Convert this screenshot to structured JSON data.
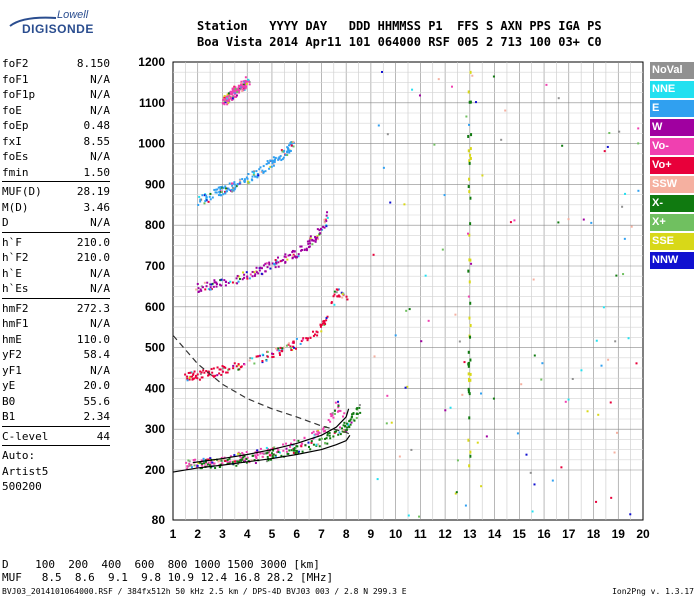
{
  "logo": {
    "line1": "Lowell",
    "line2": "DIGISONDE"
  },
  "header": {
    "line1": "Station   YYYY DAY   DDD HHMMSS P1  FFS S AXN PPS IGA PS",
    "line2": "Boa Vista 2014 Apr11 101 064000 RSF 005 2 713 100 03+ C0"
  },
  "params": [
    {
      "name": "foF2",
      "value": "8.150"
    },
    {
      "name": "foF1",
      "value": "N/A"
    },
    {
      "name": "foF1p",
      "value": "N/A"
    },
    {
      "name": "foE",
      "value": "N/A"
    },
    {
      "name": "foEp",
      "value": "0.48"
    },
    {
      "name": "fxI",
      "value": "8.55"
    },
    {
      "name": "foEs",
      "value": "N/A"
    },
    {
      "name": "fmin",
      "value": "1.50"
    },
    {
      "sep": true
    },
    {
      "name": "MUF(D)",
      "value": "28.19"
    },
    {
      "name": "M(D)",
      "value": "3.46"
    },
    {
      "name": "D",
      "value": "N/A"
    },
    {
      "sep": true
    },
    {
      "name": "h`F",
      "value": "210.0"
    },
    {
      "name": "h`F2",
      "value": "210.0"
    },
    {
      "name": "h`E",
      "value": "N/A"
    },
    {
      "name": "h`Es",
      "value": "N/A"
    },
    {
      "sep": true
    },
    {
      "name": "hmF2",
      "value": "272.3"
    },
    {
      "name": "hmF1",
      "value": "N/A"
    },
    {
      "name": "hmE",
      "value": "110.0"
    },
    {
      "name": "yF2",
      "value": "58.4"
    },
    {
      "name": "yF1",
      "value": "N/A"
    },
    {
      "name": "yE",
      "value": "20.0"
    },
    {
      "name": "B0",
      "value": "55.6"
    },
    {
      "name": "B1",
      "value": "2.34"
    },
    {
      "sep": true
    },
    {
      "name": "C-level",
      "value": "44"
    },
    {
      "sep": true
    },
    {
      "text": "Auto:"
    },
    {
      "text": "Artist5"
    },
    {
      "text": "500200"
    }
  ],
  "legend": [
    {
      "label": "NoVal",
      "color": "#909090"
    },
    {
      "label": "NNE",
      "color": "#22e0f0"
    },
    {
      "label": "E",
      "color": "#30a0f0"
    },
    {
      "label": "W",
      "color": "#a000a0"
    },
    {
      "label": "Vo-",
      "color": "#f040b0"
    },
    {
      "label": "Vo+",
      "color": "#e8003a"
    },
    {
      "label": "SSW",
      "color": "#f5b0a0"
    },
    {
      "label": "X-",
      "color": "#107a10"
    },
    {
      "label": "X+",
      "color": "#70c060"
    },
    {
      "label": "SSE",
      "color": "#d8d818"
    },
    {
      "label": "NNW",
      "color": "#1010d0"
    }
  ],
  "bottom": {
    "line1": "D    100  200  400  600  800 1000 1500 3000 [km]",
    "line2": "MUF   8.5  8.6  9.1  9.8 10.9 12.4 16.8 28.2 [MHz]"
  },
  "footer": "BVJ03_2014101064000.RSF / 384fx512h 50 kHz 2.5 km / DPS-4D BVJ03 003 / 2.8 N 299.3 E",
  "version": "Ion2Png v. 1.3.17",
  "chart_data": {
    "type": "scatter",
    "x_ticks": [
      "1",
      "2",
      "3",
      "4",
      "5",
      "6",
      "7",
      "8",
      "9",
      "10",
      "11",
      "12",
      "13",
      "14",
      "15",
      "16",
      "17",
      "18",
      "19",
      "20"
    ],
    "y_ticks": [
      "80",
      "200",
      "300",
      "400",
      "500",
      "600",
      "700",
      "800",
      "900",
      "1000",
      "1100",
      "1200"
    ],
    "xlim": [
      1,
      20
    ],
    "ylim": [
      80,
      1200
    ],
    "grid": true,
    "traces": [
      {
        "name": "O-trace F2",
        "color": "#f040b0",
        "points": [
          [
            1.5,
            215
          ],
          [
            2,
            218
          ],
          [
            2.5,
            222
          ],
          [
            3,
            228
          ],
          [
            3.5,
            232
          ],
          [
            4,
            238
          ],
          [
            4.5,
            242
          ],
          [
            5,
            250
          ],
          [
            5.5,
            258
          ],
          [
            6,
            268
          ],
          [
            6.5,
            280
          ],
          [
            7,
            300
          ],
          [
            7.3,
            330
          ],
          [
            7.6,
            360
          ],
          [
            7.9,
            330
          ]
        ]
      },
      {
        "name": "X-trace F2",
        "color": "#107a10",
        "points": [
          [
            2,
            214
          ],
          [
            3,
            220
          ],
          [
            4,
            226
          ],
          [
            5,
            238
          ],
          [
            6,
            252
          ],
          [
            7,
            272
          ],
          [
            7.8,
            300
          ],
          [
            8.2,
            330
          ],
          [
            8.5,
            355
          ]
        ]
      },
      {
        "name": "2nd hop",
        "color": "#e8003a",
        "points": [
          [
            1.5,
            430
          ],
          [
            2,
            435
          ],
          [
            2.5,
            440
          ],
          [
            3,
            448
          ],
          [
            3.5,
            455
          ],
          [
            4,
            465
          ],
          [
            4.5,
            475
          ],
          [
            5,
            488
          ],
          [
            5.5,
            500
          ],
          [
            6,
            512
          ],
          [
            6.5,
            530
          ],
          [
            7,
            550
          ],
          [
            7.3,
            600
          ],
          [
            7.6,
            640
          ],
          [
            8,
            620
          ]
        ]
      },
      {
        "name": "3rd hop",
        "color": "#a000a0",
        "points": [
          [
            1.8,
            645
          ],
          [
            2.5,
            655
          ],
          [
            3,
            662
          ],
          [
            3.5,
            670
          ],
          [
            4,
            680
          ],
          [
            4.5,
            692
          ],
          [
            5,
            705
          ],
          [
            5.5,
            720
          ],
          [
            6,
            735
          ],
          [
            6.5,
            760
          ],
          [
            7,
            790
          ],
          [
            7.2,
            830
          ]
        ]
      },
      {
        "name": "4th hop",
        "color": "#30a0f0",
        "points": [
          [
            2,
            860
          ],
          [
            2.5,
            875
          ],
          [
            3,
            888
          ],
          [
            3.5,
            900
          ],
          [
            4,
            918
          ],
          [
            4.5,
            935
          ],
          [
            5,
            955
          ],
          [
            5.5,
            980
          ],
          [
            5.8,
            1005
          ]
        ]
      },
      {
        "name": "5th hop",
        "color": "#f040b0",
        "points": [
          [
            3,
            1105
          ],
          [
            3.3,
            1120
          ],
          [
            3.6,
            1135
          ],
          [
            4,
            1155
          ]
        ]
      }
    ],
    "profile": {
      "points": [
        [
          1,
          530
        ],
        [
          2,
          460
        ],
        [
          3,
          410
        ],
        [
          4,
          375
        ],
        [
          5,
          350
        ],
        [
          6,
          330
        ],
        [
          7,
          308
        ],
        [
          7.5,
          300
        ],
        [
          8,
          292
        ],
        [
          8.15,
          288
        ]
      ]
    },
    "fit_curves": [
      {
        "points": [
          [
            1,
            195
          ],
          [
            2,
            205
          ],
          [
            3,
            212
          ],
          [
            4,
            220
          ],
          [
            5,
            228
          ],
          [
            6,
            238
          ],
          [
            7,
            250
          ],
          [
            7.6,
            262
          ],
          [
            8,
            272
          ],
          [
            8.15,
            285
          ]
        ]
      },
      {
        "points": [
          [
            1.8,
            218
          ],
          [
            3,
            228
          ],
          [
            4,
            238
          ],
          [
            5,
            250
          ],
          [
            6,
            265
          ],
          [
            7,
            285
          ],
          [
            7.6,
            305
          ],
          [
            8,
            330
          ],
          [
            8.1,
            350
          ]
        ]
      }
    ]
  }
}
